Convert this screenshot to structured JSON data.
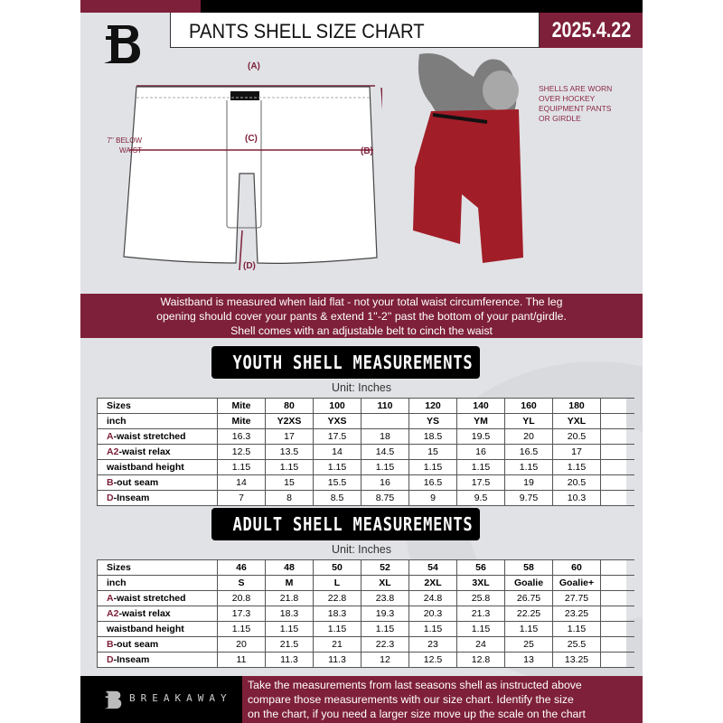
{
  "header": {
    "title": "PANTS SHELL SIZE CHART",
    "date": "2025.4.22",
    "logo": "B"
  },
  "diagram": {
    "label_a": "(A)",
    "label_b": "(B)",
    "label_c": "(C)",
    "label_d": "(D)",
    "c_note_line1": "7'' BELOW",
    "c_note_line2": "WAIST"
  },
  "photo_note": [
    "SHELLS ARE WORN",
    "OVER HOCKEY",
    "EQUIPMENT PANTS",
    "OR GIRDLE"
  ],
  "info_band": [
    "Waistband is measured when laid flat - not your total waist circumference. The leg",
    "opening should cover your pants & extend 1''-2'' past the bottom of your pant/girdle.",
    "Shell comes with an adjustable belt to cinch the waist"
  ],
  "youth": {
    "title": "YOUTH SHELL MEASUREMENTS",
    "unit": "Unit: Inches",
    "rows": [
      {
        "prefix": "",
        "label": "Sizes",
        "values": [
          "Mite",
          "80",
          "100",
          "110",
          "120",
          "140",
          "160",
          "180"
        ]
      },
      {
        "prefix": "",
        "label": "inch",
        "values": [
          "Mite",
          "Y2XS",
          "YXS",
          "",
          "YS",
          "YM",
          "YL",
          "YXL"
        ]
      },
      {
        "prefix": "A",
        "label": "-waist stretched",
        "values": [
          "16.3",
          "17",
          "17.5",
          "18",
          "18.5",
          "19.5",
          "20",
          "20.5"
        ]
      },
      {
        "prefix": "A2",
        "label": "-waist relax",
        "values": [
          "12.5",
          "13.5",
          "14",
          "14.5",
          "15",
          "16",
          "16.5",
          "17"
        ]
      },
      {
        "prefix": "",
        "label": "waistband height",
        "values": [
          "1.15",
          "1.15",
          "1.15",
          "1.15",
          "1.15",
          "1.15",
          "1.15",
          "1.15"
        ]
      },
      {
        "prefix": "B",
        "label": "-out seam",
        "values": [
          "14",
          "15",
          "15.5",
          "16",
          "16.5",
          "17.5",
          "19",
          "20.5"
        ]
      },
      {
        "prefix": "D",
        "label": "-Inseam",
        "values": [
          "7",
          "8",
          "8.5",
          "8.75",
          "9",
          "9.5",
          "9.75",
          "10.3"
        ]
      }
    ]
  },
  "adult": {
    "title": "ADULT SHELL MEASUREMENTS",
    "unit": "Unit: Inches",
    "rows": [
      {
        "prefix": "",
        "label": "Sizes",
        "values": [
          "46",
          "48",
          "50",
          "52",
          "54",
          "56",
          "58",
          "60"
        ]
      },
      {
        "prefix": "",
        "label": "inch",
        "values": [
          "S",
          "M",
          "L",
          "XL",
          "2XL",
          "3XL",
          "Goalie",
          "Goalie+"
        ]
      },
      {
        "prefix": "A",
        "label": "-waist stretched",
        "values": [
          "20.8",
          "21.8",
          "22.8",
          "23.8",
          "24.8",
          "25.8",
          "26.75",
          "27.75"
        ]
      },
      {
        "prefix": "A2",
        "label": "-waist relax",
        "values": [
          "17.3",
          "18.3",
          "18.3",
          "19.3",
          "20.3",
          "21.3",
          "22.25",
          "23.25"
        ]
      },
      {
        "prefix": "",
        "label": "waistband height",
        "values": [
          "1.15",
          "1.15",
          "1.15",
          "1.15",
          "1.15",
          "1.15",
          "1.15",
          "1.15"
        ]
      },
      {
        "prefix": "B",
        "label": "-out seam",
        "values": [
          "20",
          "21.5",
          "21",
          "22.3",
          "23",
          "24",
          "25",
          "25.5"
        ]
      },
      {
        "prefix": "D",
        "label": "-Inseam",
        "values": [
          "11",
          "11.3",
          "11.3",
          "12",
          "12.5",
          "12.8",
          "13",
          "13.25"
        ]
      }
    ]
  },
  "footer": {
    "brand": "BREAKAWAY",
    "text": [
      "Take the measurements from last seasons shell as instructed above",
      "compare those measurements  with our size chart. Identify the size",
      "on the chart, if you need a larger size move up the scale on the chart"
    ]
  },
  "colors": {
    "accent": "#7e2039",
    "background": "#e1e2e6",
    "dark": "#000000"
  }
}
